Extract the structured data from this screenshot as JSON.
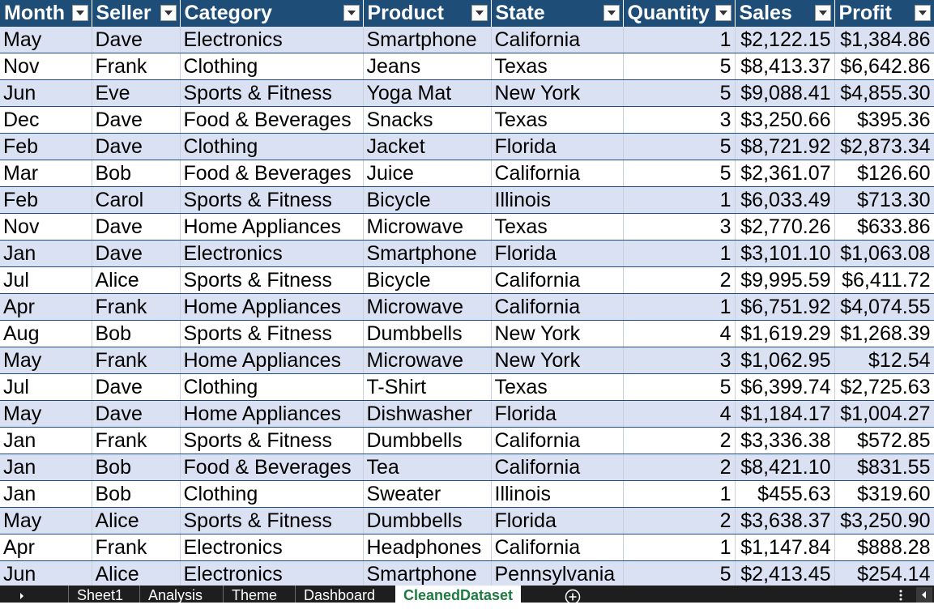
{
  "table": {
    "headers": [
      "Month",
      "Seller",
      "Category",
      "Product",
      "State",
      "Quantity",
      "Sales",
      "Profit"
    ],
    "rows": [
      [
        "May",
        "Dave",
        "Electronics",
        "Smartphone",
        "California",
        "1",
        "$2,122.15",
        "$1,384.86"
      ],
      [
        "Nov",
        "Frank",
        "Clothing",
        "Jeans",
        "Texas",
        "5",
        "$8,413.37",
        "$6,642.86"
      ],
      [
        "Jun",
        "Eve",
        "Sports & Fitness",
        "Yoga Mat",
        "New York",
        "5",
        "$9,088.41",
        "$4,855.30"
      ],
      [
        "Dec",
        "Dave",
        "Food & Beverages",
        "Snacks",
        "Texas",
        "3",
        "$3,250.66",
        "$395.36"
      ],
      [
        "Feb",
        "Dave",
        "Clothing",
        "Jacket",
        "Florida",
        "5",
        "$8,721.92",
        "$2,873.34"
      ],
      [
        "Mar",
        "Bob",
        "Food & Beverages",
        "Juice",
        "California",
        "5",
        "$2,361.07",
        "$126.60"
      ],
      [
        "Feb",
        "Carol",
        "Sports & Fitness",
        "Bicycle",
        "Illinois",
        "1",
        "$6,033.49",
        "$713.30"
      ],
      [
        "Nov",
        "Dave",
        "Home Appliances",
        "Microwave",
        "Texas",
        "3",
        "$2,770.26",
        "$633.86"
      ],
      [
        "Jan",
        "Dave",
        "Electronics",
        "Smartphone",
        "Florida",
        "1",
        "$3,101.10",
        "$1,063.08"
      ],
      [
        "Jul",
        "Alice",
        "Sports & Fitness",
        "Bicycle",
        "California",
        "2",
        "$9,995.59",
        "$6,411.72"
      ],
      [
        "Apr",
        "Frank",
        "Home Appliances",
        "Microwave",
        "California",
        "1",
        "$6,751.92",
        "$4,074.55"
      ],
      [
        "Aug",
        "Bob",
        "Sports & Fitness",
        "Dumbbells",
        "New York",
        "4",
        "$1,619.29",
        "$1,268.39"
      ],
      [
        "May",
        "Frank",
        "Home Appliances",
        "Microwave",
        "New York",
        "3",
        "$1,062.95",
        "$12.54"
      ],
      [
        "Jul",
        "Dave",
        "Clothing",
        "T-Shirt",
        "Texas",
        "5",
        "$6,399.74",
        "$2,725.63"
      ],
      [
        "May",
        "Dave",
        "Home Appliances",
        "Dishwasher",
        "Florida",
        "4",
        "$1,184.17",
        "$1,004.27"
      ],
      [
        "Jan",
        "Frank",
        "Sports & Fitness",
        "Dumbbells",
        "California",
        "2",
        "$3,336.38",
        "$572.85"
      ],
      [
        "Jan",
        "Bob",
        "Food & Beverages",
        "Tea",
        "California",
        "2",
        "$8,421.10",
        "$831.55"
      ],
      [
        "Jan",
        "Bob",
        "Clothing",
        "Sweater",
        "Illinois",
        "1",
        "$455.63",
        "$319.60"
      ],
      [
        "May",
        "Alice",
        "Sports & Fitness",
        "Dumbbells",
        "Florida",
        "2",
        "$3,638.37",
        "$3,250.90"
      ],
      [
        "Apr",
        "Frank",
        "Electronics",
        "Headphones",
        "California",
        "1",
        "$1,147.84",
        "$888.28"
      ],
      [
        "Jun",
        "Alice",
        "Electronics",
        "Smartphone",
        "Pennsylvania",
        "5",
        "$2,413.45",
        "$254.14"
      ]
    ]
  },
  "sheet_tabs": [
    "Sheet1",
    "Analysis",
    "Theme",
    "Dashboard",
    "CleanedDataset"
  ],
  "active_tab": "CleanedDataset",
  "icons": {
    "filter": "filter-dropdown-icon",
    "nav": "sheet-nav-right-icon",
    "add": "add-sheet-icon",
    "more": "more-options-icon",
    "scroll": "scroll-left-icon"
  },
  "colors": {
    "header_bg": "#1e4d78",
    "band_bg": "#d9e1f2",
    "tabbar_bg": "#1e1e1e",
    "active_tab_text": "#1d7b41"
  }
}
